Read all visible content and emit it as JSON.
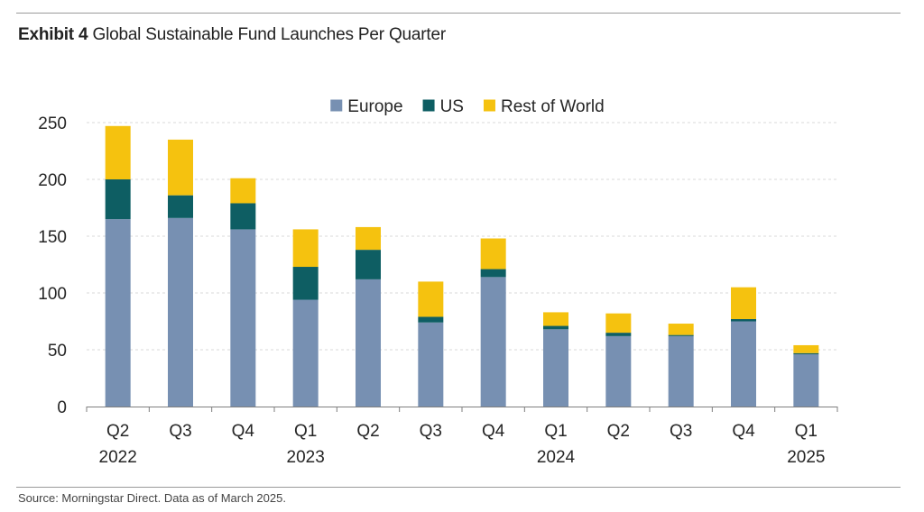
{
  "header": {
    "exhibit_label": "Exhibit 4",
    "title": "Global Sustainable Fund Launches Per Quarter"
  },
  "footer": {
    "source": "Source: Morningstar Direct. Data as of March 2025."
  },
  "colors": {
    "europe": "#7790b2",
    "us": "#0e5e63",
    "rest_of_world": "#f5c20f",
    "grid": "#d9d9d9",
    "axis": "#7f7f7f",
    "text": "#262626"
  },
  "chart_data": {
    "type": "bar",
    "stacked": true,
    "title": "Global Sustainable Fund Launches Per Quarter",
    "xlabel": "",
    "ylabel": "",
    "ylim": [
      0,
      250
    ],
    "yticks": [
      0,
      50,
      100,
      150,
      200,
      250
    ],
    "grid": true,
    "legend_position": "top-center",
    "categories": [
      {
        "quarter": "Q2",
        "year": "2022"
      },
      {
        "quarter": "Q3",
        "year": ""
      },
      {
        "quarter": "Q4",
        "year": ""
      },
      {
        "quarter": "Q1",
        "year": "2023"
      },
      {
        "quarter": "Q2",
        "year": ""
      },
      {
        "quarter": "Q3",
        "year": ""
      },
      {
        "quarter": "Q4",
        "year": ""
      },
      {
        "quarter": "Q1",
        "year": "2024"
      },
      {
        "quarter": "Q2",
        "year": ""
      },
      {
        "quarter": "Q3",
        "year": ""
      },
      {
        "quarter": "Q4",
        "year": ""
      },
      {
        "quarter": "Q1",
        "year": "2025"
      }
    ],
    "series": [
      {
        "name": "Europe",
        "color_key": "europe",
        "values": [
          165,
          166,
          156,
          94,
          112,
          74,
          114,
          68,
          62,
          62,
          75,
          46
        ]
      },
      {
        "name": "US",
        "color_key": "us",
        "values": [
          35,
          20,
          23,
          29,
          26,
          5,
          7,
          3,
          3,
          1,
          2,
          1
        ]
      },
      {
        "name": "Rest of World",
        "color_key": "rest_of_world",
        "values": [
          47,
          49,
          22,
          33,
          20,
          31,
          27,
          12,
          17,
          10,
          28,
          7
        ]
      }
    ]
  }
}
